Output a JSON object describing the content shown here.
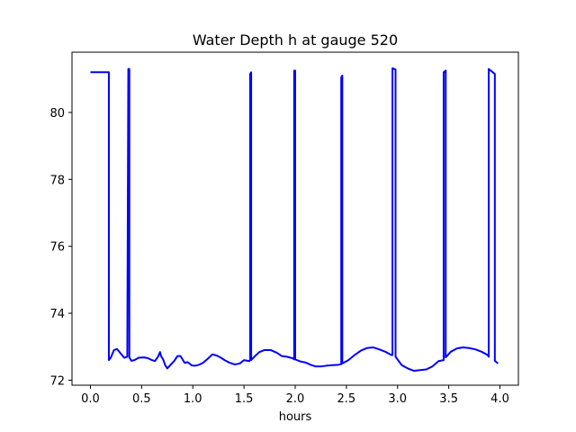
{
  "chart_data": {
    "type": "line",
    "title": "Water Depth h at gauge 520",
    "xlabel": "hours",
    "ylabel": "",
    "xlim": [
      -0.18,
      4.18
    ],
    "ylim": [
      71.85,
      81.8
    ],
    "xticks": [
      0.0,
      0.5,
      1.0,
      1.5,
      2.0,
      2.5,
      3.0,
      3.5,
      4.0
    ],
    "xtick_labels": [
      "0.0",
      "0.5",
      "1.0",
      "1.5",
      "2.0",
      "2.5",
      "3.0",
      "3.5",
      "4.0"
    ],
    "yticks": [
      72,
      74,
      76,
      78,
      80
    ],
    "ytick_labels": [
      "72",
      "74",
      "76",
      "78",
      "80"
    ],
    "grid": false,
    "legend": "none",
    "series": [
      {
        "color": "#0000ff",
        "x": [
          0.0,
          0.18,
          0.18,
          0.2,
          0.23,
          0.26,
          0.3,
          0.33,
          0.36,
          0.37,
          0.37,
          0.38,
          0.38,
          0.4,
          0.43,
          0.47,
          0.52,
          0.56,
          0.6,
          0.63,
          0.66,
          0.68,
          0.69,
          0.71,
          0.73,
          0.75,
          0.78,
          0.82,
          0.85,
          0.88,
          0.92,
          0.95,
          0.99,
          1.02,
          1.06,
          1.1,
          1.15,
          1.19,
          1.23,
          1.27,
          1.31,
          1.36,
          1.41,
          1.46,
          1.5,
          1.55,
          1.56,
          1.56,
          1.57,
          1.57,
          1.6,
          1.65,
          1.7,
          1.76,
          1.82,
          1.87,
          1.92,
          1.98,
          1.99,
          1.99,
          2.0,
          2.0,
          2.05,
          2.1,
          2.15,
          2.2,
          2.25,
          2.3,
          2.36,
          2.42,
          2.45,
          2.45,
          2.46,
          2.46,
          2.52,
          2.58,
          2.64,
          2.7,
          2.76,
          2.82,
          2.88,
          2.94,
          2.95,
          2.95,
          2.98,
          2.98,
          3.04,
          3.1,
          3.16,
          3.22,
          3.28,
          3.34,
          3.4,
          3.45,
          3.45,
          3.47,
          3.47,
          3.52,
          3.58,
          3.64,
          3.7,
          3.76,
          3.82,
          3.88,
          3.89,
          3.89,
          3.95,
          3.95,
          3.98
        ],
        "y": [
          81.2,
          81.2,
          72.6,
          72.68,
          72.9,
          72.93,
          72.78,
          72.67,
          72.7,
          81.3,
          81.3,
          81.3,
          72.68,
          72.58,
          72.6,
          72.67,
          72.68,
          72.66,
          72.6,
          72.57,
          72.7,
          72.84,
          72.72,
          72.62,
          72.45,
          72.35,
          72.45,
          72.58,
          72.72,
          72.72,
          72.52,
          72.54,
          72.44,
          72.43,
          72.46,
          72.52,
          72.65,
          72.77,
          72.74,
          72.68,
          72.6,
          72.52,
          72.47,
          72.5,
          72.6,
          72.57,
          72.6,
          81.15,
          81.2,
          72.6,
          72.7,
          72.84,
          72.9,
          72.9,
          72.82,
          72.72,
          72.7,
          72.65,
          72.62,
          81.25,
          81.25,
          72.62,
          72.56,
          72.53,
          72.46,
          72.41,
          72.41,
          72.43,
          72.45,
          72.46,
          72.48,
          81.05,
          81.1,
          72.5,
          72.6,
          72.75,
          72.88,
          72.96,
          72.98,
          72.92,
          72.85,
          72.75,
          72.75,
          81.32,
          81.28,
          72.7,
          72.45,
          72.35,
          72.28,
          72.3,
          72.32,
          72.41,
          72.57,
          72.6,
          81.2,
          81.25,
          72.68,
          72.85,
          72.95,
          72.98,
          72.96,
          72.92,
          72.85,
          72.75,
          72.7,
          81.3,
          81.15,
          72.58,
          72.5
        ]
      }
    ]
  }
}
